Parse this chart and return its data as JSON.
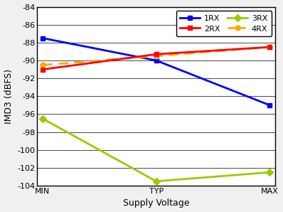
{
  "x_labels": [
    "MIN",
    "TYP",
    "MAX"
  ],
  "x_positions": [
    0,
    1,
    2
  ],
  "series": [
    {
      "label": "1RX",
      "values": [
        -87.5,
        -90.0,
        -95.0
      ],
      "color": "#0000FF",
      "linestyle": "-",
      "marker": "s",
      "markersize": 5,
      "linewidth": 2.0,
      "dashes": null,
      "zorder": 3
    },
    {
      "label": "2RX",
      "values": [
        -91.0,
        -89.3,
        -88.5
      ],
      "color": "#FF0000",
      "linestyle": "-",
      "marker": "s",
      "markersize": 5,
      "linewidth": 2.0,
      "dashes": null,
      "zorder": 4
    },
    {
      "label": "3RX",
      "values": [
        -96.5,
        -103.5,
        -102.5
      ],
      "color": "#99CC00",
      "linestyle": "-",
      "marker": "D",
      "markersize": 5,
      "linewidth": 2.0,
      "dashes": null,
      "zorder": 2
    },
    {
      "label": "4RX",
      "values": [
        -90.5,
        -89.5,
        -88.5
      ],
      "color": "#FFAA00",
      "linestyle": "--",
      "marker": "o",
      "markersize": 5,
      "linewidth": 2.0,
      "dashes": [
        5,
        3
      ],
      "zorder": 3
    }
  ],
  "ylabel": "IMD3 (dBFS)",
  "xlabel": "Supply Voltage",
  "ylim": [
    -104,
    -84
  ],
  "yticks": [
    -104,
    -102,
    -100,
    -98,
    -96,
    -94,
    -92,
    -90,
    -88,
    -86,
    -84
  ],
  "figure_bg": "#F0F0F0",
  "plot_bg": "#FFFFFF",
  "grid_color": "#000000",
  "spine_color": "#000000",
  "legend_ncol": 2,
  "axis_fontsize": 9,
  "tick_fontsize": 8,
  "legend_fontsize": 8
}
